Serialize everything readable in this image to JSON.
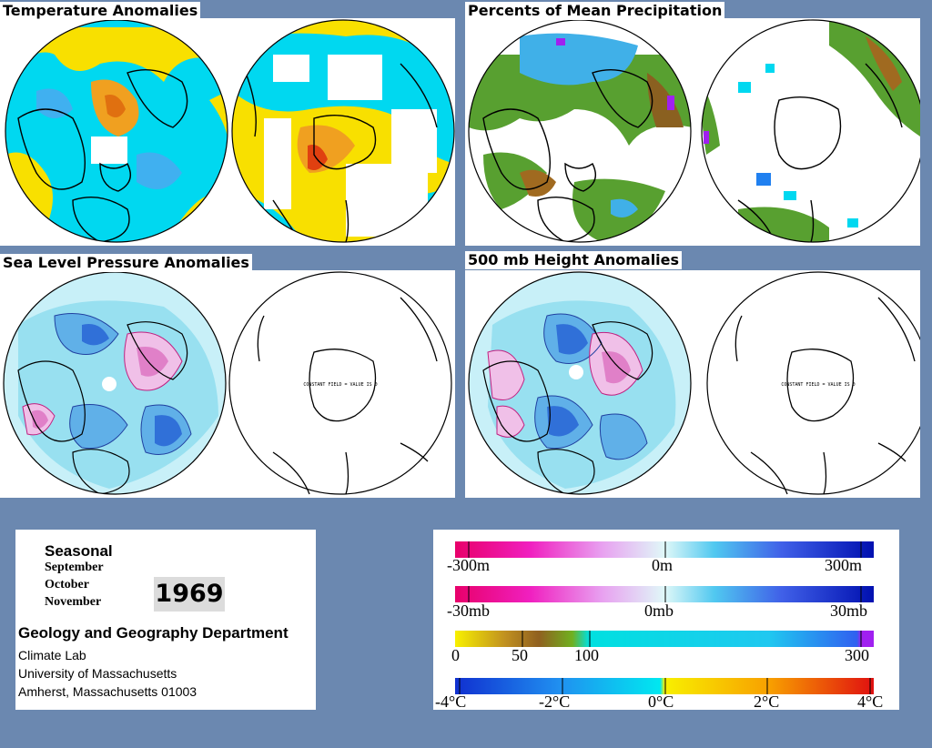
{
  "panels": {
    "temperature": {
      "title": "Temperature Anomalies"
    },
    "precipitation": {
      "title": "Percents of Mean Precipitation"
    },
    "slp": {
      "title": "Sea Level Pressure Anomalies",
      "constant_field": "CONSTANT FIELD = VALUE IS 0"
    },
    "height500": {
      "title": "500 mb Height Anomalies",
      "constant_field": "CONSTANT FIELD = VALUE IS 0"
    }
  },
  "info": {
    "season": "Seasonal",
    "months": [
      "September",
      "October",
      "November"
    ],
    "year": "1969",
    "department": "Geology and Geography Department",
    "address": [
      "Climate Lab",
      "University of Massachusetts",
      "Amherst, Massachusetts 01003"
    ]
  },
  "legends": {
    "height": {
      "labels": [
        "-300m",
        "0m",
        "300m"
      ]
    },
    "pressure": {
      "labels": [
        "-30mb",
        "0mb",
        "30mb"
      ]
    },
    "precip": {
      "labels": [
        "0",
        "50",
        "100",
        "300"
      ]
    },
    "temp": {
      "labels": [
        "-4°C",
        "-2°C",
        "0°C",
        "2°C",
        "4°C"
      ]
    }
  },
  "colors": {
    "background": "#6b88b0",
    "temp_cold": "#00d8f0",
    "temp_warm": "#f8e000",
    "temp_hot": "#e04010",
    "precip_wet": "#2080f0",
    "precip_dry": "#508020",
    "anom_positive": "#e040a0",
    "anom_negative": "#2050d0"
  }
}
